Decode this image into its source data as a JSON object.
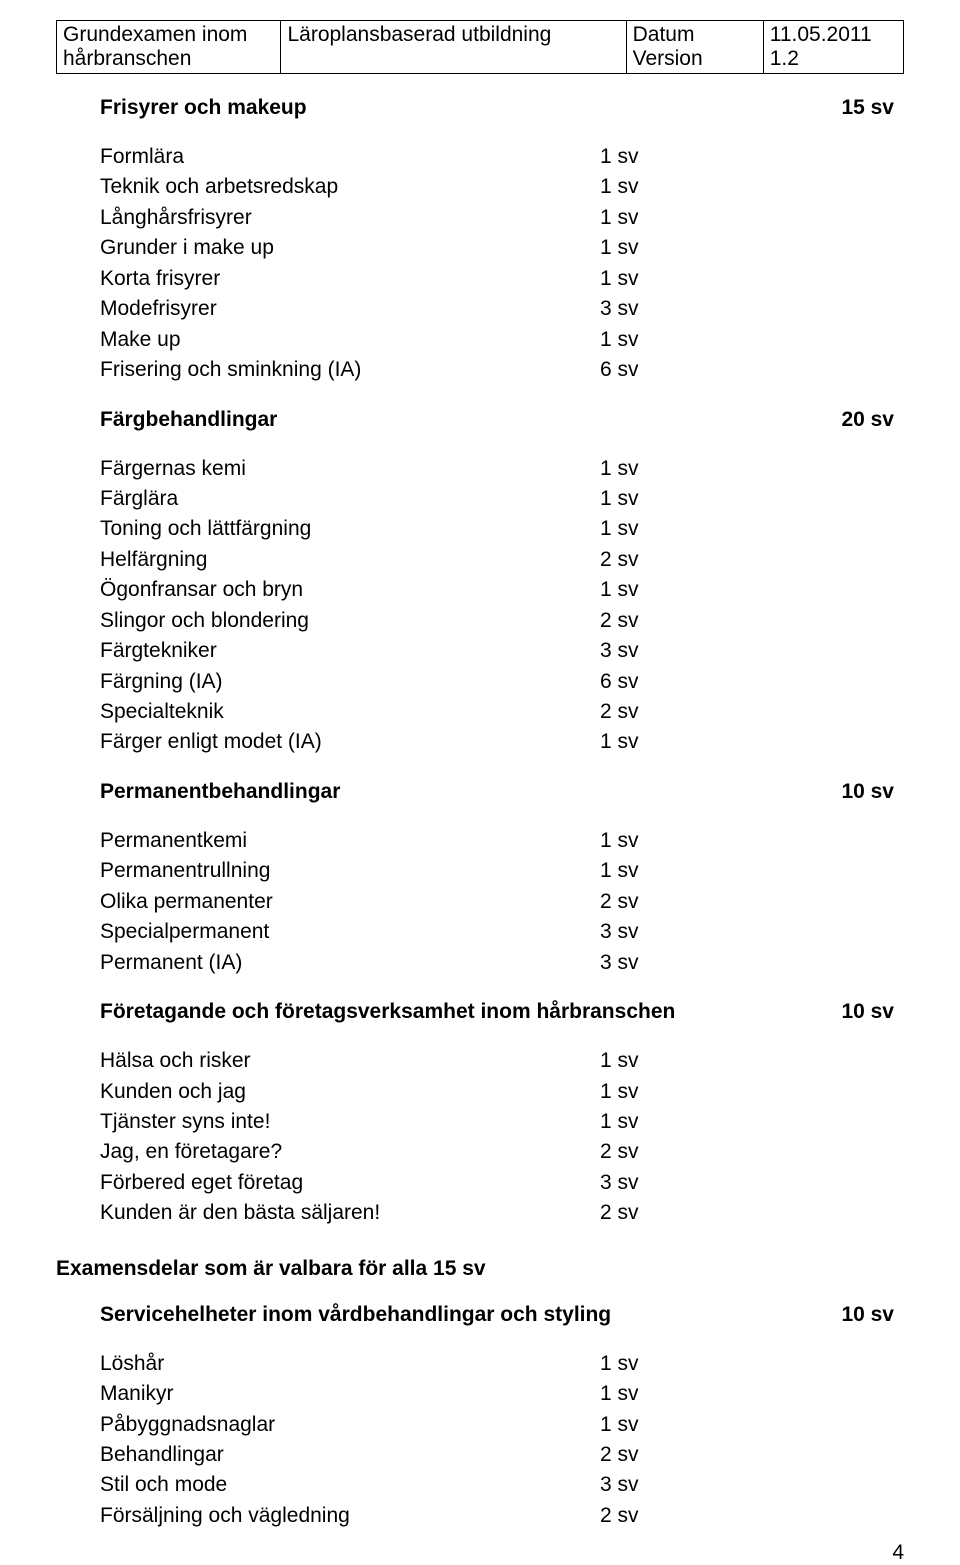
{
  "header": {
    "col1_line1": "Grundexamen inom",
    "col1_line2": "hårbranschen",
    "col2": "Läroplansbaserad utbildning",
    "col3_line1": "Datum",
    "col3_line2": "Version",
    "col4_line1": "11.05.2011",
    "col4_line2": "1.2"
  },
  "sections": [
    {
      "title": "Frisyrer och makeup",
      "value": "15 sv",
      "items": [
        {
          "label": "Formlära",
          "value": "1 sv"
        },
        {
          "label": "Teknik och arbetsredskap",
          "value": "1 sv"
        },
        {
          "label": "Långhårsfrisyrer",
          "value": "1 sv"
        },
        {
          "label": "Grunder i make up",
          "value": "1 sv"
        },
        {
          "label": "Korta frisyrer",
          "value": "1 sv"
        },
        {
          "label": "Modefrisyrer",
          "value": "3 sv"
        },
        {
          "label": "Make up",
          "value": "1 sv"
        },
        {
          "label": "Frisering och sminkning (IA)",
          "value": "6 sv"
        }
      ]
    },
    {
      "title": "Färgbehandlingar",
      "value": "20 sv",
      "items": [
        {
          "label": "Färgernas kemi",
          "value": "1 sv"
        },
        {
          "label": "Färglära",
          "value": "1 sv"
        },
        {
          "label": "Toning och lättfärgning",
          "value": "1 sv"
        },
        {
          "label": "Helfärgning",
          "value": "2 sv"
        },
        {
          "label": "Ögonfransar och bryn",
          "value": "1 sv"
        },
        {
          "label": "Slingor och blondering",
          "value": "2 sv"
        },
        {
          "label": "Färgtekniker",
          "value": "3 sv"
        },
        {
          "label": "Färgning (IA)",
          "value": "6 sv"
        },
        {
          "label": "Specialteknik",
          "value": "2 sv"
        },
        {
          "label": "Färger enligt modet (IA)",
          "value": "1 sv"
        }
      ]
    },
    {
      "title": "Permanentbehandlingar",
      "value": "10 sv",
      "items": [
        {
          "label": "Permanentkemi",
          "value": "1 sv"
        },
        {
          "label": "Permanentrullning",
          "value": "1 sv"
        },
        {
          "label": "Olika permanenter",
          "value": "2 sv"
        },
        {
          "label": "Specialpermanent",
          "value": "3 sv"
        },
        {
          "label": "Permanent (IA)",
          "value": "3 sv"
        }
      ]
    },
    {
      "title": "Företagande och företagsverksamhet inom hårbranschen",
      "value": "10 sv",
      "items": [
        {
          "label": "Hälsa och risker",
          "value": "1 sv"
        },
        {
          "label": "Kunden och jag",
          "value": "1 sv"
        },
        {
          "label": "Tjänster syns inte!",
          "value": "1 sv"
        },
        {
          "label": "Jag, en företagare?",
          "value": "2 sv"
        },
        {
          "label": "Förbered eget företag",
          "value": "3 sv"
        },
        {
          "label": "Kunden är den bästa säljaren!",
          "value": "2 sv"
        }
      ]
    }
  ],
  "midHeading": "Examensdelar som är valbara för alla 15 sv",
  "sections2": [
    {
      "title": "Servicehelheter inom vårdbehandlingar och styling",
      "value": "10 sv",
      "items": [
        {
          "label": "Löshår",
          "value": "1 sv"
        },
        {
          "label": "Manikyr",
          "value": "1 sv"
        },
        {
          "label": "Påbyggnadsnaglar",
          "value": "1 sv"
        },
        {
          "label": "Behandlingar",
          "value": "2 sv"
        },
        {
          "label": "Stil och mode",
          "value": "3 sv"
        },
        {
          "label": "Försäljning och vägledning",
          "value": "2 sv"
        }
      ]
    }
  ],
  "pageNumber": "4"
}
